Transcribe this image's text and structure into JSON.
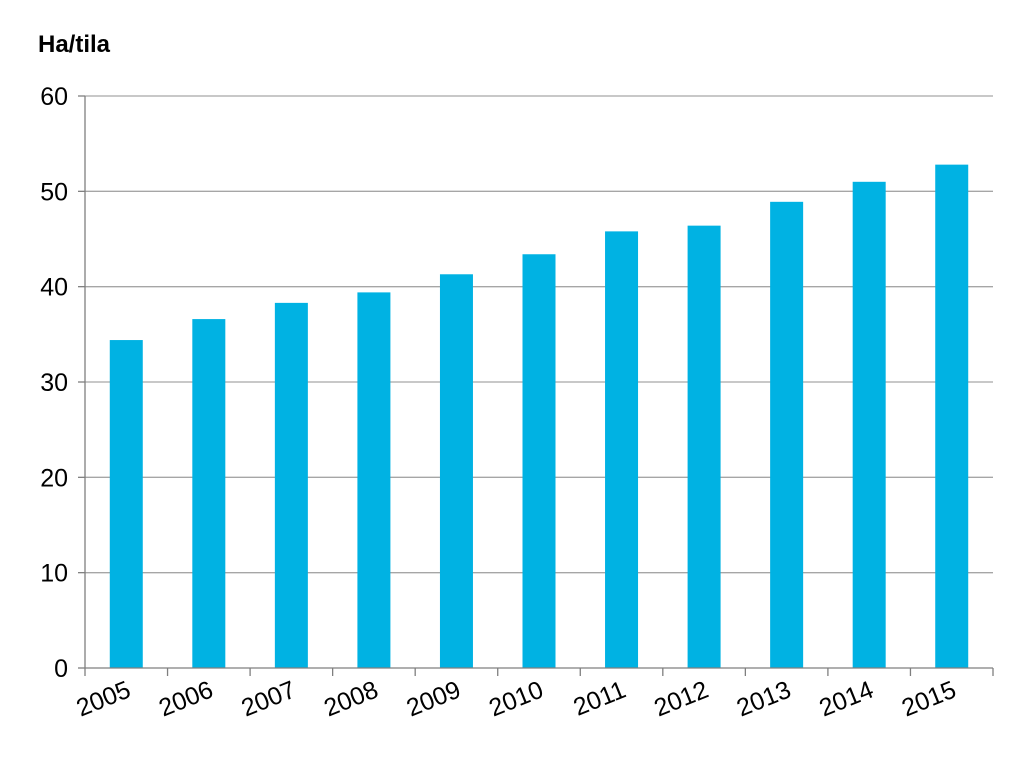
{
  "chart_data": {
    "type": "bar",
    "title": "",
    "xlabel": "",
    "ylabel": "Ha/tila",
    "categories": [
      "2005",
      "2006",
      "2007",
      "2008",
      "2009",
      "2010",
      "2011",
      "2012",
      "2013",
      "2014",
      "2015"
    ],
    "values": [
      34.4,
      36.6,
      38.3,
      39.4,
      41.3,
      43.4,
      45.8,
      46.4,
      48.9,
      51.0,
      52.8
    ],
    "ylim": [
      0,
      60
    ],
    "yticks": [
      0,
      10,
      20,
      30,
      40,
      50,
      60
    ],
    "grid": true,
    "bar_color": "#00B2E3",
    "grid_color": "#A6A6A6",
    "axis_color": "#7F7F7F"
  }
}
